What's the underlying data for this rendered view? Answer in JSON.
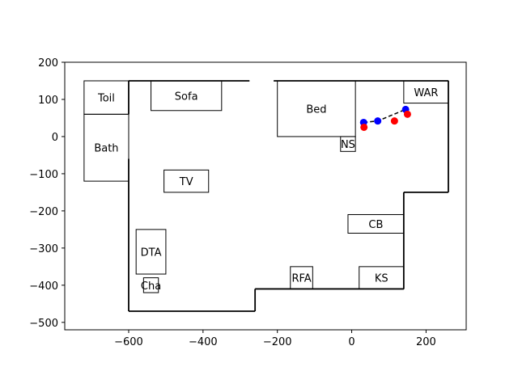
{
  "chart_data": {
    "type": "scatter",
    "title": "",
    "xlabel": "",
    "ylabel": "",
    "xlim": [
      -772,
      308
    ],
    "ylim": [
      -520,
      200
    ],
    "x_ticks": [
      -600,
      -400,
      -200,
      0,
      200
    ],
    "x_tick_labels": [
      "−600",
      "−400",
      "−200",
      "0",
      "200"
    ],
    "y_ticks": [
      200,
      100,
      0,
      -100,
      -200,
      -300,
      -400,
      -500
    ],
    "y_tick_labels": [
      "200",
      "100",
      "0",
      "−100",
      "−200",
      "−300",
      "−400",
      "−500"
    ],
    "grid": false,
    "walls": [
      [
        [
          -600,
          150
        ],
        [
          -600,
          60
        ]
      ],
      [
        [
          -600,
          -60
        ],
        [
          -600,
          -470
        ]
      ],
      [
        [
          -600,
          -470
        ],
        [
          -260,
          -470
        ]
      ],
      [
        [
          -260,
          -470
        ],
        [
          -260,
          -410
        ]
      ],
      [
        [
          -260,
          -410
        ],
        [
          140,
          -410
        ]
      ],
      [
        [
          140,
          -410
        ],
        [
          140,
          -150
        ]
      ],
      [
        [
          140,
          -150
        ],
        [
          260,
          -150
        ]
      ],
      [
        [
          260,
          -150
        ],
        [
          260,
          150
        ]
      ],
      [
        [
          260,
          150
        ],
        [
          -210,
          150
        ]
      ],
      [
        [
          -275,
          150
        ],
        [
          -600,
          150
        ]
      ]
    ],
    "furniture": [
      {
        "label": "Toil",
        "x0": -720,
        "y0": 60,
        "x1": -600,
        "y1": 150
      },
      {
        "label": "Bath",
        "x0": -720,
        "y0": -120,
        "x1": -600,
        "y1": 60
      },
      {
        "label": "Sofa",
        "x0": -540,
        "y0": 70,
        "x1": -350,
        "y1": 150
      },
      {
        "label": "Bed",
        "x0": -200,
        "y0": 0,
        "x1": 10,
        "y1": 150
      },
      {
        "label": "WAR",
        "x0": 140,
        "y0": 90,
        "x1": 260,
        "y1": 150
      },
      {
        "label": "NS",
        "x0": -30,
        "y0": -40,
        "x1": 10,
        "y1": 0
      },
      {
        "label": "TV",
        "x0": -505,
        "y0": -150,
        "x1": -385,
        "y1": -90
      },
      {
        "label": "CB",
        "x0": -10,
        "y0": -260,
        "x1": 140,
        "y1": -210
      },
      {
        "label": "DTA",
        "x0": -580,
        "y0": -370,
        "x1": -500,
        "y1": -250
      },
      {
        "label": "Cha",
        "x0": -560,
        "y0": -420,
        "x1": -520,
        "y1": -380
      },
      {
        "label": "RFA",
        "x0": -165,
        "y0": -410,
        "x1": -105,
        "y1": -350
      },
      {
        "label": "KS",
        "x0": 20,
        "y0": -410,
        "x1": 140,
        "y1": -350
      }
    ],
    "series": [
      {
        "color": "#0000ff",
        "x": [
          32,
          70,
          145
        ],
        "y": [
          38,
          42,
          73
        ]
      },
      {
        "color": "#ff0000",
        "x": [
          33,
          115,
          150
        ],
        "y": [
          25,
          42,
          60
        ]
      }
    ]
  }
}
